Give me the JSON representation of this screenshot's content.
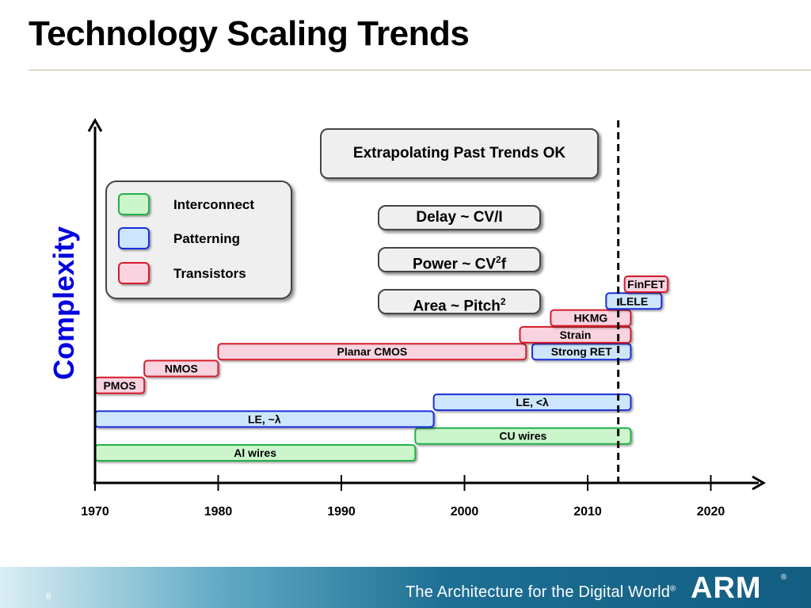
{
  "slide": {
    "title": "Technology Scaling Trends",
    "page_number": "8"
  },
  "callouts": {
    "main": "Extrapolating Past Trends OK",
    "delay": "Delay ~ CV/I",
    "power_pre": "Power ~ CV",
    "power_sup": "2",
    "power_post": "f",
    "area_pre": "Area ~ Pitch",
    "area_sup": "2"
  },
  "legend": [
    {
      "label": "Interconnect",
      "fill": "#ccf5cc",
      "stroke": "#22b04a"
    },
    {
      "label": "Patterning",
      "fill": "#cde6fb",
      "stroke": "#1a2ed8"
    },
    {
      "label": "Transistors",
      "fill": "#f9d3e0",
      "stroke": "#d41c2a"
    }
  ],
  "axis": {
    "y_label": "Complexity",
    "x_ticks": [
      "1970",
      "1980",
      "1990",
      "2000",
      "2010",
      "2020"
    ]
  },
  "colors": {
    "Interconnect": {
      "fill": "#ccf5cc",
      "stroke": "#22b04a"
    },
    "Patterning": {
      "fill": "#cde6fb",
      "stroke": "#1a2ed8"
    },
    "Transistors": {
      "fill": "#f9d3e0",
      "stroke": "#d41c2a"
    }
  },
  "chart_data": {
    "type": "timeline",
    "xlim": [
      1970,
      2023
    ],
    "cutoff_year": 2013,
    "bars": [
      {
        "label": "Al wires",
        "category": "Interconnect",
        "start": 1970,
        "end": 1996,
        "row": 0
      },
      {
        "label": "CU wires",
        "category": "Interconnect",
        "start": 1996,
        "end": 2013.5,
        "row": 1
      },
      {
        "label": "LE, ~λ",
        "category": "Patterning",
        "start": 1970,
        "end": 1997.5,
        "row": 2
      },
      {
        "label": "LE, <λ",
        "category": "Patterning",
        "start": 1997.5,
        "end": 2013.5,
        "row": 3
      },
      {
        "label": "PMOS",
        "category": "Transistors",
        "start": 1970,
        "end": 1974,
        "row": 4
      },
      {
        "label": "NMOS",
        "category": "Transistors",
        "start": 1974,
        "end": 1980,
        "row": 5
      },
      {
        "label": "Planar CMOS",
        "category": "Transistors",
        "start": 1980,
        "end": 2005,
        "row": 6
      },
      {
        "label": "Strong RET",
        "category": "Patterning",
        "start": 2005.5,
        "end": 2013.5,
        "row": 6
      },
      {
        "label": "Strain",
        "category": "Transistors",
        "start": 2004.5,
        "end": 2013.5,
        "row": 7
      },
      {
        "label": "HKMG",
        "category": "Transistors",
        "start": 2007,
        "end": 2013.5,
        "row": 8
      },
      {
        "label": "LELE",
        "category": "Patterning",
        "start": 2011.5,
        "end": 2016,
        "row": 9
      },
      {
        "label": "FinFET",
        "category": "Transistors",
        "start": 2013,
        "end": 2016.5,
        "row": 10
      }
    ]
  },
  "footer": {
    "tagline": "The Architecture for the Digital World",
    "tagline_mark": "®",
    "logo": "ARM",
    "logo_mark": "®"
  }
}
